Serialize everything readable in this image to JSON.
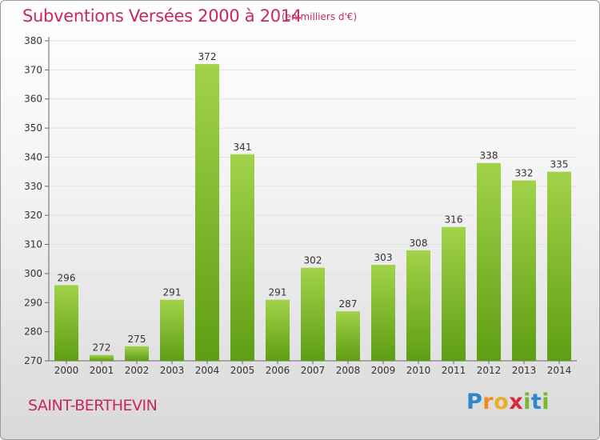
{
  "title": "Subventions Versées 2000 à 2014",
  "unit_note": "(en milliers d'€)",
  "commune": "SAINT-BERTHEVIN",
  "logo": {
    "letters": [
      "P",
      "r",
      "o",
      "x",
      "i",
      "t",
      "i"
    ],
    "colors": [
      "#2f86c8",
      "#f08c1e",
      "#e8b020",
      "#d8283c",
      "#79b82a",
      "#2f86c8",
      "#79b82a"
    ]
  },
  "colors": {
    "accent": "#c8285a",
    "bar_top": "#a2d24a",
    "bar_bottom": "#5e9e14"
  },
  "chart_data": {
    "type": "bar",
    "title": "Subventions Versées 2000 à 2014",
    "subtitle": "(en milliers d'€)",
    "categories": [
      "2000",
      "2001",
      "2002",
      "2003",
      "2004",
      "2005",
      "2006",
      "2007",
      "2008",
      "2009",
      "2010",
      "2011",
      "2012",
      "2013",
      "2014"
    ],
    "values": [
      296,
      272,
      275,
      291,
      372,
      341,
      291,
      302,
      287,
      303,
      308,
      316,
      338,
      332,
      335
    ],
    "ylim": [
      270,
      380
    ],
    "yticks": [
      270,
      280,
      290,
      300,
      310,
      320,
      330,
      340,
      350,
      360,
      370,
      380
    ],
    "grid": true,
    "legend": "none"
  }
}
